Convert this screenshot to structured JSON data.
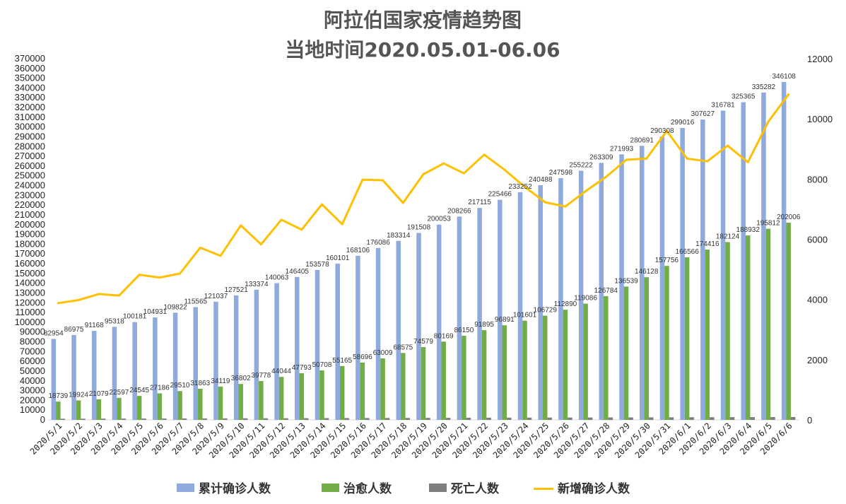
{
  "chart_data": {
    "type": "bar",
    "title": "阿拉伯国家疫情趋势图",
    "subtitle": "当地时间2020.05.01-06.06",
    "categories": [
      "2020/5/1",
      "2020/5/2",
      "2020/5/3",
      "2020/5/4",
      "2020/5/5",
      "2020/5/6",
      "2020/5/7",
      "2020/5/8",
      "2020/5/9",
      "2020/5/10",
      "2020/5/11",
      "2020/5/12",
      "2020/5/13",
      "2020/5/14",
      "2020/5/15",
      "2020/5/16",
      "2020/5/17",
      "2020/5/18",
      "2020/5/19",
      "2020/5/20",
      "2020/5/21",
      "2020/5/22",
      "2020/5/23",
      "2020/5/24",
      "2020/5/25",
      "2020/5/26",
      "2020/5/27",
      "2020/5/28",
      "2020/5/29",
      "2020/5/30",
      "2020/5/31",
      "2020/6/1",
      "2020/6/2",
      "2020/6/3",
      "2020/6/4",
      "2020/6/5",
      "2020/6/6"
    ],
    "series": [
      {
        "name": "累计确诊人数",
        "type": "bar",
        "axis": "left",
        "color": "#8faadc",
        "values": [
          82954,
          86975,
          91168,
          95318,
          100181,
          104931,
          109822,
          115565,
          121037,
          127521,
          133374,
          140063,
          146405,
          153578,
          160101,
          168106,
          176086,
          183314,
          191508,
          200053,
          208266,
          217115,
          225466,
          233252,
          240488,
          247598,
          255222,
          263309,
          271993,
          280691,
          290308,
          299016,
          307627,
          316781,
          325365,
          335282,
          346108
        ]
      },
      {
        "name": "治愈人数",
        "type": "bar",
        "axis": "left",
        "color": "#70ad47",
        "values": [
          18739,
          19924,
          21079,
          22597,
          24545,
          27186,
          29510,
          31863,
          34119,
          36802,
          39778,
          44044,
          47793,
          50708,
          55165,
          58696,
          63009,
          68575,
          74579,
          80169,
          86150,
          91895,
          96891,
          101601,
          106729,
          112890,
          119086,
          126784,
          136539,
          146128,
          157756,
          166566,
          174416,
          182124,
          188932,
          195812,
          202006
        ]
      },
      {
        "name": "死亡人数",
        "type": "bar",
        "axis": "left",
        "color": "#7f7f7f",
        "values": [
          1150,
          1200,
          1250,
          1300,
          1350,
          1400,
          1450,
          1500,
          1550,
          1600,
          1650,
          1700,
          1750,
          1800,
          1850,
          1900,
          1950,
          2000,
          2050,
          2100,
          2150,
          2200,
          2250,
          2300,
          2350,
          2400,
          2450,
          2500,
          2550,
          2600,
          2650,
          2700,
          2750,
          2800,
          2850,
          2900,
          2950
        ]
      },
      {
        "name": "新增确诊人数",
        "type": "line",
        "axis": "right",
        "color": "#ffc000",
        "values": [
          3880,
          3980,
          4180,
          4130,
          4820,
          4730,
          4860,
          5720,
          5450,
          6460,
          5830,
          6650,
          6320,
          7160,
          6500,
          7980,
          7960,
          7210,
          8160,
          8520,
          8190,
          8810,
          8310,
          7740,
          7230,
          7090,
          7600,
          8070,
          8640,
          8680,
          9600,
          8680,
          8590,
          9110,
          8560,
          9900,
          10810
        ]
      }
    ],
    "ylim_left": [
      0,
      370000
    ],
    "yticks_left": [
      "0",
      "10000",
      "20000",
      "30000",
      "40000",
      "50000",
      "60000",
      "70000",
      "80000",
      "90000",
      "100000",
      "110000",
      "120000",
      "130000",
      "140000",
      "150000",
      "160000",
      "170000",
      "180000",
      "190000",
      "200000",
      "210000",
      "220000",
      "230000",
      "240000",
      "250000",
      "260000",
      "270000",
      "280000",
      "290000",
      "300000",
      "310000",
      "320000",
      "330000",
      "340000",
      "350000",
      "360000",
      "370000"
    ],
    "ylim_right": [
      0,
      12000
    ],
    "yticks_right": [
      "0",
      "2000",
      "4000",
      "6000",
      "8000",
      "10000",
      "12000"
    ],
    "grid": false,
    "legend_position": "bottom"
  }
}
